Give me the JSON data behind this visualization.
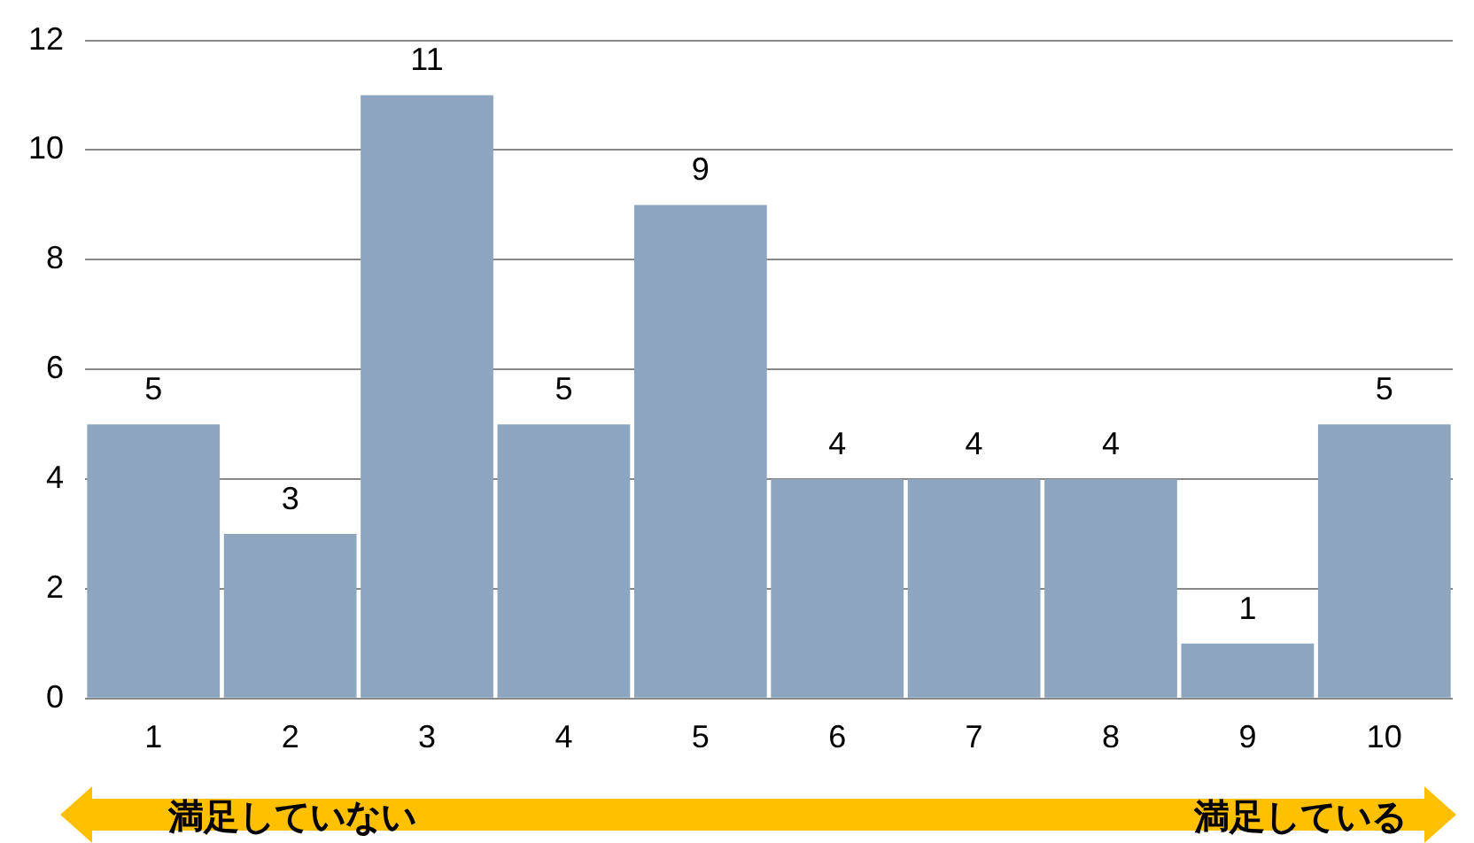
{
  "chart_data": {
    "type": "bar",
    "categories": [
      "1",
      "2",
      "3",
      "4",
      "5",
      "6",
      "7",
      "8",
      "9",
      "10"
    ],
    "values": [
      5,
      3,
      11,
      5,
      9,
      4,
      4,
      4,
      1,
      5
    ],
    "color": "#8ea5c0",
    "ylim": [
      0,
      12
    ],
    "yticks": [
      0,
      2,
      4,
      6,
      8,
      10,
      12
    ],
    "grid": "y",
    "data_labels": true,
    "legend": false,
    "annotations": [
      "満足していない",
      "満足している"
    ]
  }
}
